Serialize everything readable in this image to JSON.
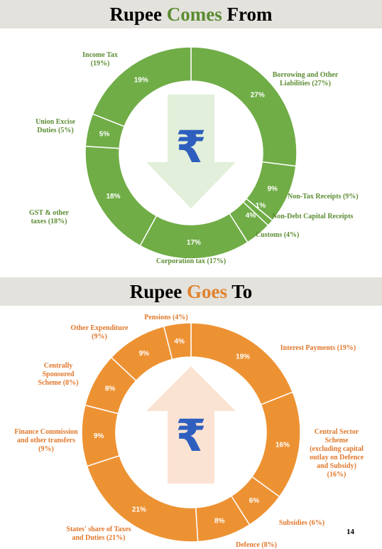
{
  "page_number": "14",
  "colors": {
    "green": "#70ad47",
    "green_text": "#5b8c32",
    "orange": "#ed9233",
    "orange_text": "#e0782c",
    "banner_bg": "#e4e2dc",
    "pct_text": "#ffffff"
  },
  "icons": {
    "rupee_down": "rupee-down-arrow-icon",
    "rupee_up": "rupee-up-arrow-icon"
  },
  "chart_data": [
    {
      "type": "pie",
      "title_parts": [
        "Rupee ",
        "Comes",
        " From"
      ],
      "slices": [
        {
          "name": "Borrowing and Other Liabilities (27%)",
          "value": 27,
          "pct": "27%"
        },
        {
          "name": "Non-Tax Receipts (9%)",
          "value": 9,
          "pct": "9%"
        },
        {
          "name": "Non-Debt Capital Receipts",
          "value": 1,
          "pct": "1%"
        },
        {
          "name": "Customs (4%)",
          "value": 4,
          "pct": "4%"
        },
        {
          "name": "Corporation tax (17%)",
          "value": 17,
          "pct": "17%"
        },
        {
          "name": "GST & other taxes (18%)",
          "value": 18,
          "pct": "18%"
        },
        {
          "name": "Union Excise Duties (5%)",
          "value": 5,
          "pct": "5%"
        },
        {
          "name": "Income Tax (19%)",
          "value": 19,
          "pct": "19%"
        }
      ]
    },
    {
      "type": "pie",
      "title_parts": [
        "Rupee ",
        "Goes",
        " To"
      ],
      "slices": [
        {
          "name": "Interest Payments (19%)",
          "value": 19,
          "pct": "19%"
        },
        {
          "name": "Central Sector Scheme (excluding capital outlay on Defence and Subsidy) (16%)",
          "value": 16,
          "pct": "16%"
        },
        {
          "name": "Subsidies (6%)",
          "value": 6,
          "pct": "6%"
        },
        {
          "name": "Defence (8%)",
          "value": 8,
          "pct": "8%"
        },
        {
          "name": "States' share of Taxes and Duties (21%)",
          "value": 21,
          "pct": "21%"
        },
        {
          "name": "Finance Commission and other transfers (9%)",
          "value": 9,
          "pct": "9%"
        },
        {
          "name": "Centrally Sponsored Scheme (8%)",
          "value": 8,
          "pct": "8%"
        },
        {
          "name": "Other Expenditure (9%)",
          "value": 9,
          "pct": "9%"
        },
        {
          "name": "Pensions (4%)",
          "value": 4,
          "pct": "4%"
        }
      ]
    }
  ]
}
